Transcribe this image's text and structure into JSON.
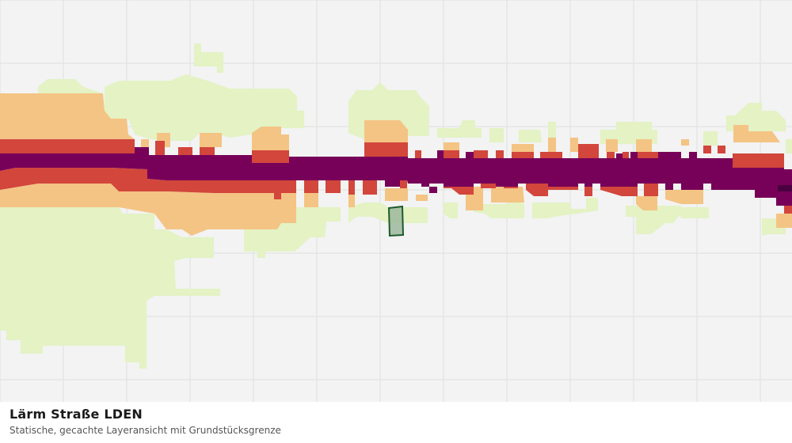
{
  "caption": {
    "title": "Lärm Straße LDEN",
    "subtitle": "Statische, gecachte Layeransicht mit Grundstücksgrenze"
  },
  "map": {
    "background_color": "#f2f3f2",
    "grid_color": "#dfe1df",
    "noise_classes": [
      {
        "name": "class-1",
        "color": "#e4f2c4"
      },
      {
        "name": "class-2",
        "color": "#f4c484"
      },
      {
        "name": "class-3",
        "color": "#d2463c"
      },
      {
        "name": "class-4",
        "color": "#770058"
      },
      {
        "name": "class-5",
        "color": "#4a0040"
      }
    ],
    "parcel": {
      "fill": "#9cb89c",
      "stroke": "#1e5a2c"
    }
  }
}
